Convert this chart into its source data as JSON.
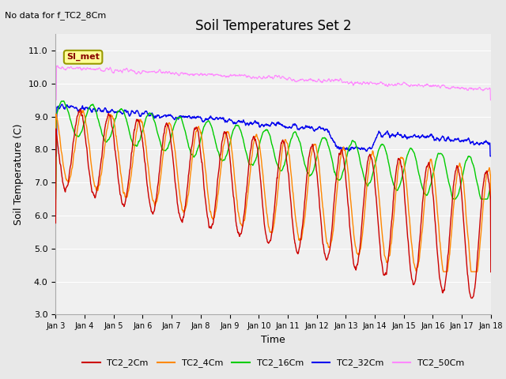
{
  "title": "Soil Temperatures Set 2",
  "subtitle": "No data for f_TC2_8Cm",
  "xlabel": "Time",
  "ylabel": "Soil Temperature (C)",
  "ylim": [
    3.0,
    11.5
  ],
  "yticks": [
    3.0,
    4.0,
    5.0,
    6.0,
    7.0,
    8.0,
    9.0,
    10.0,
    11.0
  ],
  "xlim": [
    0,
    360
  ],
  "xtick_labels": [
    "Jan 3",
    "Jan 4",
    "Jan 5",
    "Jan 6",
    "Jan 7",
    "Jan 8",
    "Jan 9",
    "Jan 10",
    "Jan 11",
    "Jan 12",
    "Jan 13",
    "Jan 14",
    "Jan 15",
    "Jan 16",
    "Jan 17",
    "Jan 18"
  ],
  "xtick_positions": [
    0,
    24,
    48,
    72,
    96,
    120,
    144,
    168,
    192,
    216,
    240,
    264,
    288,
    312,
    336,
    360
  ],
  "colors": {
    "TC2_2Cm": "#cc0000",
    "TC2_4Cm": "#ff8800",
    "TC2_16Cm": "#00cc00",
    "TC2_32Cm": "#0000ee",
    "TC2_50Cm": "#ff88ff"
  },
  "background_color": "#e8e8e8",
  "plot_bg_color": "#f0f0f0",
  "grid_color": "#ffffff",
  "legend_label": "SI_met",
  "legend_bg": "#ffff99",
  "legend_border": "#999900"
}
